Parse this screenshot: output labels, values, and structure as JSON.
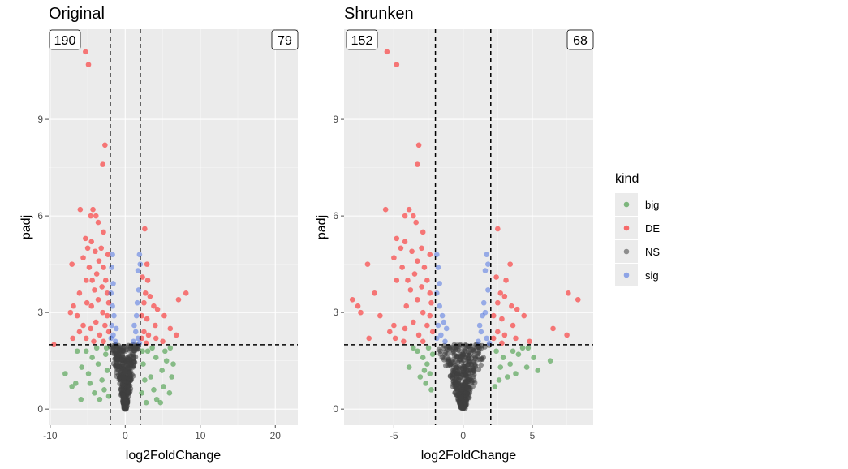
{
  "legend": {
    "title": "kind",
    "items": [
      {
        "label": "big",
        "color": "#228b22"
      },
      {
        "label": "DE",
        "color": "#ff0000"
      },
      {
        "label": "NS",
        "color": "#404040"
      },
      {
        "label": "sig",
        "color": "#4169e1"
      }
    ]
  },
  "chart_data": [
    {
      "type": "scatter",
      "title": "Original",
      "xlabel": "log2FoldChange",
      "ylabel": "padj",
      "xlim": [
        -10.2,
        23
      ],
      "ylim": [
        -0.5,
        11.8
      ],
      "xticks": [
        -10,
        0,
        10,
        20
      ],
      "yticks": [
        0,
        3,
        6,
        9
      ],
      "grid": true,
      "vlines": [
        -2,
        2
      ],
      "hline": 2,
      "counts": {
        "left": "190",
        "right": "79"
      },
      "series": [
        {
          "name": "DE",
          "points": [
            [
              -5.3,
              11.1
            ],
            [
              -4.9,
              10.7
            ],
            [
              -2.7,
              8.2
            ],
            [
              -3.0,
              7.6
            ],
            [
              -6.0,
              6.2
            ],
            [
              -4.3,
              6.2
            ],
            [
              -3.9,
              6.0
            ],
            [
              -4.6,
              6.0
            ],
            [
              -3.6,
              5.8
            ],
            [
              -2.9,
              5.5
            ],
            [
              2.6,
              5.6
            ],
            [
              -5.3,
              5.3
            ],
            [
              -4.5,
              5.2
            ],
            [
              -5.0,
              5.0
            ],
            [
              -3.2,
              5.0
            ],
            [
              -4.0,
              4.9
            ],
            [
              -2.3,
              4.8
            ],
            [
              -5.6,
              4.7
            ],
            [
              -3.5,
              4.6
            ],
            [
              -7.1,
              4.5
            ],
            [
              -4.8,
              4.4
            ],
            [
              -2.9,
              4.4
            ],
            [
              2.9,
              4.5
            ],
            [
              -3.8,
              4.2
            ],
            [
              -4.4,
              4.0
            ],
            [
              -5.2,
              4.0
            ],
            [
              -2.6,
              4.0
            ],
            [
              3.0,
              4.0
            ],
            [
              2.3,
              4.1
            ],
            [
              -3.1,
              3.8
            ],
            [
              -4.1,
              3.7
            ],
            [
              -6.1,
              3.6
            ],
            [
              -2.4,
              3.6
            ],
            [
              2.7,
              3.6
            ],
            [
              3.3,
              3.5
            ],
            [
              8.1,
              3.6
            ],
            [
              7.1,
              3.4
            ],
            [
              -3.6,
              3.4
            ],
            [
              -2.2,
              3.3
            ],
            [
              -5.1,
              3.3
            ],
            [
              -6.9,
              3.2
            ],
            [
              -4.5,
              3.2
            ],
            [
              2.5,
              3.3
            ],
            [
              3.8,
              3.2
            ],
            [
              4.3,
              3.1
            ],
            [
              -7.3,
              3.0
            ],
            [
              -3.0,
              3.0
            ],
            [
              -2.4,
              2.9
            ],
            [
              2.2,
              2.9
            ],
            [
              2.9,
              2.8
            ],
            [
              -6.4,
              2.9
            ],
            [
              5.2,
              2.9
            ],
            [
              -3.9,
              2.7
            ],
            [
              -5.6,
              2.6
            ],
            [
              -2.7,
              2.6
            ],
            [
              4.0,
              2.6
            ],
            [
              6.0,
              2.5
            ],
            [
              -4.6,
              2.5
            ],
            [
              -6.1,
              2.4
            ],
            [
              -2.2,
              2.4
            ],
            [
              2.5,
              2.4
            ],
            [
              3.1,
              2.3
            ],
            [
              -3.4,
              2.3
            ],
            [
              -5.2,
              2.2
            ],
            [
              -7.0,
              2.2
            ],
            [
              6.8,
              2.3
            ],
            [
              2.2,
              2.2
            ],
            [
              4.1,
              2.2
            ],
            [
              -9.5,
              2.0
            ],
            [
              -2.9,
              2.1
            ],
            [
              -4.2,
              2.1
            ],
            [
              5.0,
              2.1
            ],
            [
              2.8,
              2.05
            ]
          ]
        },
        {
          "name": "sig",
          "points": [
            [
              -1.7,
              4.8
            ],
            [
              -1.8,
              4.4
            ],
            [
              1.9,
              4.8
            ],
            [
              2.0,
              4.5
            ],
            [
              1.7,
              4.3
            ],
            [
              -1.6,
              3.9
            ],
            [
              -1.9,
              3.6
            ],
            [
              1.8,
              3.7
            ],
            [
              -1.7,
              3.2
            ],
            [
              1.6,
              3.3
            ],
            [
              1.5,
              2.9
            ],
            [
              -1.5,
              2.9
            ],
            [
              1.2,
              2.6
            ],
            [
              1.4,
              2.4
            ],
            [
              -1.2,
              2.5
            ],
            [
              -1.6,
              2.3
            ],
            [
              1.7,
              2.2
            ],
            [
              -1.9,
              2.2
            ],
            [
              1.1,
              2.1
            ],
            [
              -1.3,
              2.1
            ],
            [
              1.9,
              2.05
            ],
            [
              -1.8,
              2.6
            ]
          ]
        },
        {
          "name": "big",
          "points": [
            [
              -5.2,
              1.8
            ],
            [
              -4.4,
              1.6
            ],
            [
              -3.6,
              1.4
            ],
            [
              -5.8,
              1.3
            ],
            [
              -8.0,
              1.1
            ],
            [
              -4.9,
              1.1
            ],
            [
              -6.6,
              0.8
            ],
            [
              -3.1,
              0.9
            ],
            [
              -4.1,
              0.5
            ],
            [
              -5.9,
              0.3
            ],
            [
              -3.4,
              0.3
            ],
            [
              -2.6,
              1.7
            ],
            [
              -2.4,
              1.2
            ],
            [
              -2.8,
              0.6
            ],
            [
              -2.2,
              0.4
            ],
            [
              -3.8,
              1.9
            ],
            [
              -6.4,
              1.8
            ],
            [
              -7.1,
              0.7
            ],
            [
              -2.5,
              1.9
            ],
            [
              -4.7,
              0.8
            ],
            [
              3.0,
              1.8
            ],
            [
              4.1,
              1.6
            ],
            [
              5.5,
              1.5
            ],
            [
              4.9,
              1.2
            ],
            [
              6.2,
              1.0
            ],
            [
              3.4,
              1.0
            ],
            [
              5.1,
              0.7
            ],
            [
              5.9,
              0.5
            ],
            [
              4.2,
              0.3
            ],
            [
              2.4,
              1.4
            ],
            [
              2.6,
              0.9
            ],
            [
              2.2,
              0.5
            ],
            [
              3.6,
              1.9
            ],
            [
              6.0,
              1.9
            ],
            [
              4.7,
              0.2
            ],
            [
              3.8,
              0.6
            ],
            [
              5.3,
              1.8
            ],
            [
              2.3,
              1.8
            ],
            [
              2.8,
              0.2
            ],
            [
              6.4,
              1.4
            ]
          ]
        }
      ]
    },
    {
      "type": "scatter",
      "title": "Shrunken",
      "xlabel": "log2FoldChange",
      "ylabel": "padj",
      "xlim": [
        -8.6,
        9.4
      ],
      "ylim": [
        -0.5,
        11.8
      ],
      "xticks": [
        -5,
        0,
        5
      ],
      "yticks": [
        0,
        3,
        6,
        9
      ],
      "grid": true,
      "vlines": [
        -2,
        2
      ],
      "hline": 2,
      "counts": {
        "left": "152",
        "right": "68"
      },
      "series": [
        {
          "name": "DE",
          "points": [
            [
              -5.5,
              11.1
            ],
            [
              -4.8,
              10.7
            ],
            [
              -3.2,
              8.2
            ],
            [
              -3.3,
              7.6
            ],
            [
              -5.6,
              6.2
            ],
            [
              -3.9,
              6.2
            ],
            [
              -3.6,
              6.0
            ],
            [
              -4.2,
              6.0
            ],
            [
              -3.4,
              5.8
            ],
            [
              -2.9,
              5.5
            ],
            [
              2.5,
              5.6
            ],
            [
              -4.8,
              5.3
            ],
            [
              -4.2,
              5.2
            ],
            [
              -4.5,
              5.0
            ],
            [
              -3.0,
              5.0
            ],
            [
              -3.7,
              4.9
            ],
            [
              -2.4,
              4.8
            ],
            [
              -5.0,
              4.7
            ],
            [
              -3.3,
              4.6
            ],
            [
              -6.9,
              4.5
            ],
            [
              -4.4,
              4.4
            ],
            [
              -2.8,
              4.4
            ],
            [
              3.4,
              4.5
            ],
            [
              -3.5,
              4.2
            ],
            [
              -4.0,
              4.0
            ],
            [
              -4.8,
              4.0
            ],
            [
              -2.6,
              4.0
            ],
            [
              3.1,
              4.0
            ],
            [
              2.4,
              4.1
            ],
            [
              -3.0,
              3.8
            ],
            [
              -3.8,
              3.7
            ],
            [
              -6.4,
              3.6
            ],
            [
              -2.4,
              3.6
            ],
            [
              2.7,
              3.6
            ],
            [
              3.0,
              3.5
            ],
            [
              7.6,
              3.6
            ],
            [
              8.3,
              3.4
            ],
            [
              -3.3,
              3.4
            ],
            [
              -2.3,
              3.3
            ],
            [
              -8.0,
              3.4
            ],
            [
              -7.6,
              3.2
            ],
            [
              -4.1,
              3.2
            ],
            [
              2.5,
              3.3
            ],
            [
              3.5,
              3.2
            ],
            [
              3.9,
              3.1
            ],
            [
              -7.4,
              3.0
            ],
            [
              -2.9,
              3.0
            ],
            [
              -2.4,
              2.9
            ],
            [
              2.2,
              2.9
            ],
            [
              2.8,
              2.8
            ],
            [
              -6.0,
              2.9
            ],
            [
              4.4,
              2.9
            ],
            [
              -3.6,
              2.7
            ],
            [
              -5.0,
              2.6
            ],
            [
              -2.6,
              2.6
            ],
            [
              3.6,
              2.6
            ],
            [
              6.5,
              2.5
            ],
            [
              -4.2,
              2.5
            ],
            [
              -5.3,
              2.4
            ],
            [
              -2.2,
              2.4
            ],
            [
              2.5,
              2.4
            ],
            [
              3.0,
              2.3
            ],
            [
              -3.2,
              2.3
            ],
            [
              -4.9,
              2.2
            ],
            [
              -6.8,
              2.2
            ],
            [
              7.5,
              2.3
            ],
            [
              2.2,
              2.2
            ],
            [
              3.8,
              2.2
            ],
            [
              -4.3,
              2.1
            ],
            [
              -2.9,
              2.1
            ],
            [
              4.8,
              2.1
            ],
            [
              2.8,
              2.05
            ]
          ]
        },
        {
          "name": "sig",
          "points": [
            [
              -1.9,
              4.8
            ],
            [
              -1.8,
              4.4
            ],
            [
              1.7,
              4.8
            ],
            [
              1.8,
              4.5
            ],
            [
              1.6,
              4.3
            ],
            [
              -1.7,
              3.9
            ],
            [
              -1.9,
              3.6
            ],
            [
              1.8,
              3.7
            ],
            [
              -1.7,
              3.2
            ],
            [
              1.5,
              3.3
            ],
            [
              1.4,
              2.9
            ],
            [
              -1.5,
              2.9
            ],
            [
              1.2,
              2.6
            ],
            [
              1.3,
              2.4
            ],
            [
              -1.2,
              2.5
            ],
            [
              -1.6,
              2.3
            ],
            [
              1.7,
              2.2
            ],
            [
              -1.9,
              2.2
            ],
            [
              1.1,
              2.1
            ],
            [
              -1.3,
              2.1
            ],
            [
              1.9,
              2.05
            ],
            [
              -1.8,
              2.6
            ],
            [
              1.6,
              3.0
            ],
            [
              -1.4,
              2.7
            ]
          ]
        },
        {
          "name": "big",
          "points": [
            [
              -3.3,
              1.8
            ],
            [
              -2.9,
              1.6
            ],
            [
              -2.6,
              1.4
            ],
            [
              -3.9,
              1.3
            ],
            [
              -2.4,
              1.1
            ],
            [
              -3.1,
              1.0
            ],
            [
              -2.7,
              0.8
            ],
            [
              -2.3,
              0.6
            ],
            [
              -3.6,
              1.9
            ],
            [
              -2.2,
              1.7
            ],
            [
              -2.5,
              1.9
            ],
            [
              -2.8,
              1.2
            ],
            [
              2.4,
              1.8
            ],
            [
              2.9,
              1.6
            ],
            [
              3.4,
              1.4
            ],
            [
              4.0,
              1.7
            ],
            [
              4.7,
              1.9
            ],
            [
              5.1,
              1.6
            ],
            [
              6.3,
              1.5
            ],
            [
              4.6,
              1.3
            ],
            [
              5.4,
              1.2
            ],
            [
              3.2,
              1.0
            ],
            [
              2.6,
              0.9
            ],
            [
              2.3,
              0.7
            ],
            [
              3.8,
              1.1
            ],
            [
              4.3,
              1.9
            ],
            [
              2.7,
              1.3
            ],
            [
              3.6,
              1.8
            ]
          ]
        }
      ]
    }
  ]
}
